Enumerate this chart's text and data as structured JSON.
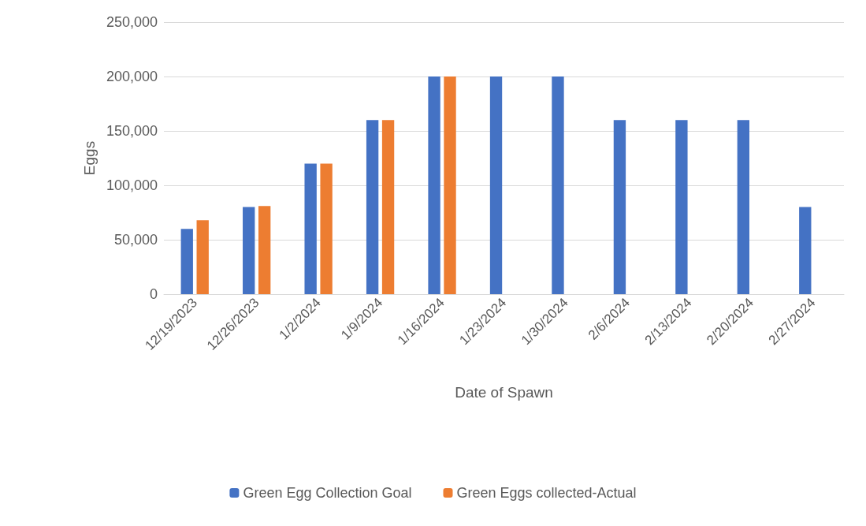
{
  "chart_data": {
    "type": "bar",
    "xlabel": "Date of Spawn",
    "ylabel": "Eggs",
    "categories": [
      "12/19/2023",
      "12/26/2023",
      "1/2/2024",
      "1/9/2024",
      "1/16/2024",
      "1/23/2024",
      "1/30/2024",
      "2/6/2024",
      "2/13/2024",
      "2/20/2024",
      "2/27/2024"
    ],
    "series": [
      {
        "name": "Green Egg Collection Goal",
        "color": "#4472c4",
        "values": [
          60000,
          80000,
          120000,
          160000,
          200000,
          200000,
          200000,
          160000,
          160000,
          160000,
          80000
        ]
      },
      {
        "name": "Green Eggs collected-Actual",
        "color": "#ed7d31",
        "values": [
          68000,
          81000,
          120000,
          160000,
          200000,
          null,
          null,
          null,
          null,
          null,
          null
        ]
      }
    ],
    "ylim": [
      0,
      250000
    ],
    "yticks": [
      0,
      {
        "value": 50000,
        "label": "50,000"
      },
      {
        "value": 100000,
        "label": "100,000"
      },
      {
        "value": 150000,
        "label": "150,000"
      },
      {
        "value": 200000,
        "label": "200,000"
      },
      {
        "value": 250000,
        "label": "250,000"
      }
    ],
    "grid": "y",
    "legend": "bottom"
  }
}
